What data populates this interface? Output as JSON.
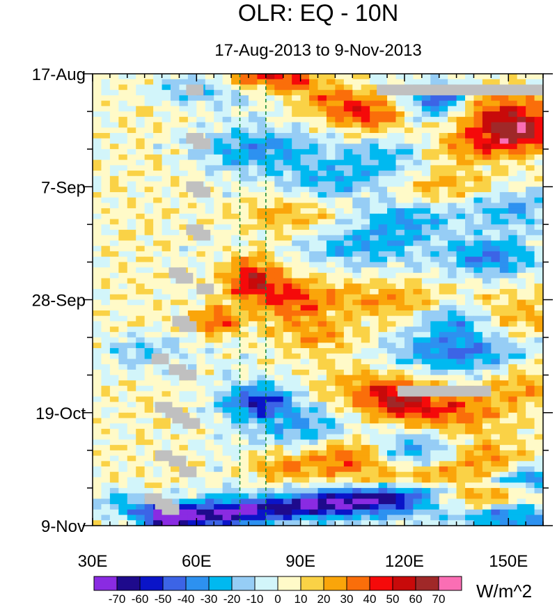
{
  "chart_data": {
    "type": "heatmap",
    "title": "OLR: EQ - 10N",
    "subtitle": "17-Aug-2013 to 9-Nov-2013",
    "units": "W/m^2",
    "x_axis": {
      "range": [
        30,
        160
      ],
      "ticks": [
        {
          "value": 30,
          "label": "30E"
        },
        {
          "value": 60,
          "label": "60E"
        },
        {
          "value": 90,
          "label": "90E"
        },
        {
          "value": 120,
          "label": "120E"
        },
        {
          "value": 150,
          "label": "150E"
        }
      ],
      "minor_ticks": [
        35,
        40,
        45,
        50,
        55,
        65,
        70,
        75,
        80,
        85,
        95,
        100,
        105,
        110,
        115,
        125,
        130,
        135,
        140,
        145,
        155,
        160
      ]
    },
    "y_axis": {
      "range_days": [
        0,
        84
      ],
      "ticks": [
        {
          "day": 0,
          "label": "17-Aug"
        },
        {
          "day": 21,
          "label": "7-Sep"
        },
        {
          "day": 42,
          "label": "28-Sep"
        },
        {
          "day": 63,
          "label": "19-Oct"
        },
        {
          "day": 84,
          "label": "9-Nov"
        }
      ],
      "minor_tick_days": [
        7,
        14,
        28,
        35,
        49,
        56,
        70,
        77
      ]
    },
    "reference_lines": [
      {
        "lon": 72.5,
        "style": "dashed",
        "color": "#1a8a3a"
      },
      {
        "lon": 80,
        "style": "dashed",
        "color": "#1a8a3a"
      }
    ],
    "colorbar": {
      "labels": [
        "-70",
        "-60",
        "-50",
        "-40",
        "-30",
        "-20",
        "-10",
        "0",
        "10",
        "20",
        "30",
        "40",
        "50",
        "60",
        "70"
      ],
      "levels": [
        -70,
        -60,
        -50,
        -40,
        -30,
        -20,
        -10,
        0,
        10,
        20,
        30,
        40,
        50,
        60,
        70
      ],
      "colors": [
        "#8a2be2",
        "#1e0a8c",
        "#0a14c8",
        "#3c64e6",
        "#2d91f0",
        "#00b9f0",
        "#96cdf5",
        "#d2f5fa",
        "#fffac8",
        "#fad246",
        "#faa50a",
        "#fa6e0a",
        "#f50a0a",
        "#c80a0a",
        "#a02828",
        "#fa6eb4"
      ]
    },
    "missing_color": "#c0c0c0",
    "missing_data": [
      {
        "lon0": 112,
        "lon1": 160,
        "day0": 2,
        "day1": 4
      },
      {
        "lon0": 118,
        "lon1": 145,
        "day0": 58,
        "day1": 60
      },
      {
        "lon0": 57,
        "lon1": 62,
        "day0": 2,
        "day1": 4
      },
      {
        "lon0": 57,
        "lon1": 62,
        "day0": 11,
        "day1": 13
      },
      {
        "lon0": 59,
        "lon1": 64,
        "day0": 12,
        "day1": 14
      },
      {
        "lon0": 57,
        "lon1": 62,
        "day0": 20,
        "day1": 22
      },
      {
        "lon0": 59,
        "lon1": 64,
        "day0": 21,
        "day1": 23
      },
      {
        "lon0": 57,
        "lon1": 62,
        "day0": 28,
        "day1": 30
      },
      {
        "lon0": 59,
        "lon1": 64,
        "day0": 29,
        "day1": 31
      },
      {
        "lon0": 52,
        "lon1": 57,
        "day0": 36,
        "day1": 38
      },
      {
        "lon0": 54,
        "lon1": 59,
        "day0": 37,
        "day1": 39
      },
      {
        "lon0": 60,
        "lon1": 65,
        "day0": 39,
        "day1": 41
      },
      {
        "lon0": 53,
        "lon1": 58,
        "day0": 45,
        "day1": 47
      },
      {
        "lon0": 55,
        "lon1": 60,
        "day0": 46,
        "day1": 48
      },
      {
        "lon0": 47,
        "lon1": 52,
        "day0": 52,
        "day1": 54
      },
      {
        "lon0": 52,
        "lon1": 57,
        "day0": 54,
        "day1": 56
      },
      {
        "lon0": 55,
        "lon1": 60,
        "day0": 55,
        "day1": 57
      },
      {
        "lon0": 48,
        "lon1": 53,
        "day0": 61,
        "day1": 63
      },
      {
        "lon0": 51,
        "lon1": 56,
        "day0": 62,
        "day1": 64
      },
      {
        "lon0": 53,
        "lon1": 58,
        "day0": 63,
        "day1": 65
      },
      {
        "lon0": 56,
        "lon1": 61,
        "day0": 64,
        "day1": 66
      },
      {
        "lon0": 48,
        "lon1": 53,
        "day0": 70,
        "day1": 72
      },
      {
        "lon0": 52,
        "lon1": 57,
        "day0": 71,
        "day1": 73
      },
      {
        "lon0": 55,
        "lon1": 60,
        "day0": 73,
        "day1": 75
      },
      {
        "lon0": 45,
        "lon1": 50,
        "day0": 78,
        "day1": 80
      },
      {
        "lon0": 48,
        "lon1": 53,
        "day0": 79,
        "day1": 81
      },
      {
        "lon0": 50,
        "lon1": 55,
        "day0": 80,
        "day1": 82
      }
    ],
    "anomaly_field": {
      "description": "Daily OLR anomaly estimated from the plot (W/m^2); sum of features evaluated on a lon/day grid",
      "background": [
        {
          "lon": 30,
          "value": 3
        },
        {
          "lon": 45,
          "value": 6
        },
        {
          "lon": 55,
          "value": 3
        },
        {
          "lon": 70,
          "value": -2
        },
        {
          "lon": 90,
          "value": 0
        },
        {
          "lon": 120,
          "value": 0
        },
        {
          "lon": 140,
          "value": 0
        },
        {
          "lon": 160,
          "value": 2
        }
      ],
      "features": [
        {
          "lon": 76,
          "day": 0.5,
          "slon": 7,
          "sday": 1.8,
          "amp": 42
        },
        {
          "lon": 88,
          "day": 1,
          "slon": 5,
          "sday": 1.8,
          "amp": 34
        },
        {
          "lon": 60,
          "day": 3,
          "slon": 10,
          "sday": 2,
          "amp": -24
        },
        {
          "lon": 100,
          "day": 5,
          "slon": 8,
          "sday": 2.5,
          "amp": 30
        },
        {
          "lon": 110,
          "day": 8,
          "slon": 7,
          "sday": 2.5,
          "amp": 36
        },
        {
          "lon": 130,
          "day": 5,
          "slon": 6,
          "sday": 2.2,
          "amp": -55
        },
        {
          "lon": 148,
          "day": 7,
          "slon": 12,
          "sday": 3,
          "amp": 38
        },
        {
          "lon": 152,
          "day": 11,
          "slon": 8,
          "sday": 2.5,
          "amp": 50
        },
        {
          "lon": 78,
          "day": 14,
          "slon": 12,
          "sday": 2.5,
          "amp": -32
        },
        {
          "lon": 115,
          "day": 15,
          "slon": 10,
          "sday": 3,
          "amp": -22
        },
        {
          "lon": 138,
          "day": 14,
          "slon": 10,
          "sday": 2.2,
          "amp": 26
        },
        {
          "lon": 100,
          "day": 20,
          "slon": 12,
          "sday": 2.5,
          "amp": -28
        },
        {
          "lon": 130,
          "day": 21,
          "slon": 12,
          "sday": 2.5,
          "amp": 25
        },
        {
          "lon": 85,
          "day": 26,
          "slon": 12,
          "sday": 3,
          "amp": 22
        },
        {
          "lon": 120,
          "day": 27,
          "slon": 9,
          "sday": 2.5,
          "amp": -30
        },
        {
          "lon": 150,
          "day": 25,
          "slon": 10,
          "sday": 2.5,
          "amp": -28
        },
        {
          "lon": 108,
          "day": 32,
          "slon": 12,
          "sday": 2.5,
          "amp": -28
        },
        {
          "lon": 145,
          "day": 34,
          "slon": 9,
          "sday": 2.5,
          "amp": -40
        },
        {
          "lon": 76,
          "day": 38,
          "slon": 6,
          "sday": 3,
          "amp": 50
        },
        {
          "lon": 88,
          "day": 42,
          "slon": 8,
          "sday": 3,
          "amp": 38
        },
        {
          "lon": 66,
          "day": 46,
          "slon": 5,
          "sday": 2,
          "amp": 40
        },
        {
          "lon": 115,
          "day": 42,
          "slon": 12,
          "sday": 2.5,
          "amp": 26
        },
        {
          "lon": 135,
          "day": 46,
          "slon": 7,
          "sday": 2.5,
          "amp": -40
        },
        {
          "lon": 150,
          "day": 45,
          "slon": 12,
          "sday": 3,
          "amp": 22
        },
        {
          "lon": 95,
          "day": 49,
          "slon": 10,
          "sday": 2.5,
          "amp": 24
        },
        {
          "lon": 135,
          "day": 52,
          "slon": 14,
          "sday": 2.5,
          "amp": -40
        },
        {
          "lon": 45,
          "day": 52,
          "slon": 8,
          "sday": 2.5,
          "amp": -24
        },
        {
          "lon": 108,
          "day": 58,
          "slon": 12,
          "sday": 3,
          "amp": 22
        },
        {
          "lon": 78,
          "day": 61,
          "slon": 7,
          "sday": 2.2,
          "amp": -55
        },
        {
          "lon": 118,
          "day": 61,
          "slon": 8,
          "sday": 2.5,
          "amp": 45
        },
        {
          "lon": 135,
          "day": 63,
          "slon": 10,
          "sday": 3,
          "amp": 34
        },
        {
          "lon": 155,
          "day": 58,
          "slon": 8,
          "sday": 3,
          "amp": 22
        },
        {
          "lon": 92,
          "day": 66,
          "slon": 10,
          "sday": 3,
          "amp": -30
        },
        {
          "lon": 104,
          "day": 71,
          "slon": 8,
          "sday": 3,
          "amp": 40
        },
        {
          "lon": 123,
          "day": 70,
          "slon": 10,
          "sday": 2.5,
          "amp": -35
        },
        {
          "lon": 143,
          "day": 71,
          "slon": 9,
          "sday": 2.5,
          "amp": 25
        },
        {
          "lon": 85,
          "day": 73,
          "slon": 8,
          "sday": 2.5,
          "amp": 28
        },
        {
          "lon": 128,
          "day": 76,
          "slon": 12,
          "sday": 3,
          "amp": 35
        },
        {
          "lon": 143,
          "day": 78,
          "slon": 9,
          "sday": 2.2,
          "amp": 45
        },
        {
          "lon": 95,
          "day": 80,
          "slon": 12,
          "sday": 2.5,
          "amp": -25
        },
        {
          "lon": 118,
          "day": 80,
          "slon": 12,
          "sday": 2,
          "amp": -35
        },
        {
          "lon": 52,
          "day": 82,
          "slon": 6,
          "sday": 1.5,
          "amp": -55
        },
        {
          "lon": 68,
          "day": 81,
          "slon": 8,
          "sday": 2,
          "amp": -30
        },
        {
          "lon": 40,
          "day": 80,
          "slon": 7,
          "sday": 1.8,
          "amp": -30
        },
        {
          "lon": 150,
          "day": 82,
          "slon": 10,
          "sday": 2,
          "amp": -45
        }
      ],
      "diagonal_bands": [
        {
          "lon0": 50,
          "day0": 83.5,
          "lon1": 160,
          "day1": 75,
          "width_days": 1.6,
          "amp": -45
        }
      ],
      "texture_amplitude": 14
    }
  }
}
